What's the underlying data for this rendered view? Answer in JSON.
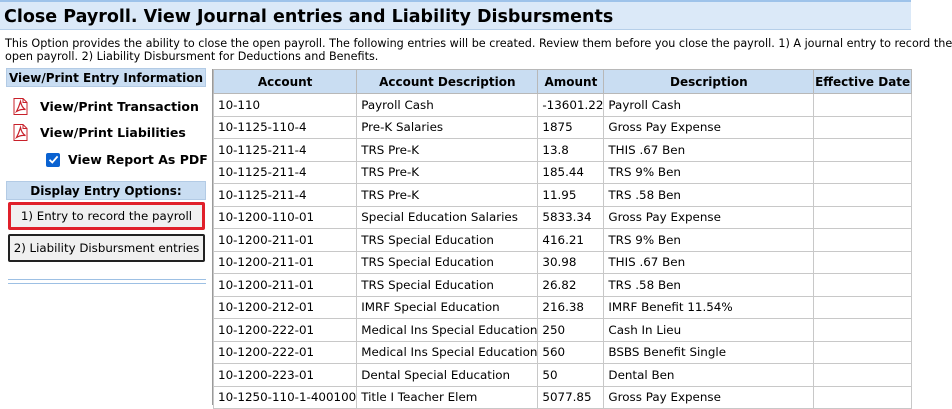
{
  "page": {
    "title": "Close Payroll. View Journal entries and Liability Disbursments",
    "description_line1": "This Option provides the ability to close the open payroll. The following entries will be created. Review them before you close the payroll. 1) A journal entry to record the",
    "description_line2": "open payroll. 2) Liability Disbursment for Deductions and Benefits."
  },
  "sidebar": {
    "view_header": "View/Print Entry Information",
    "view_transaction": "View/Print Transaction",
    "view_liabilities": "View/Print Liabilities",
    "view_as_pdf_label": "View Report As PDF",
    "view_as_pdf_checked": true,
    "display_header": "Display Entry Options:",
    "entry_payroll": "1) Entry to record the payroll",
    "entry_liability": "2) Liability Disbursment entries"
  },
  "table": {
    "headers": [
      "Account",
      "Account Description",
      "Amount",
      "Description",
      "Effective Date"
    ],
    "rows": [
      [
        "10-110",
        "Payroll Cash",
        "-13601.22",
        "Payroll Cash",
        ""
      ],
      [
        "10-1125-110-4",
        "Pre-K Salaries",
        "1875",
        "Gross Pay Expense",
        ""
      ],
      [
        "10-1125-211-4",
        "TRS Pre-K",
        "13.8",
        "THIS .67 Ben",
        ""
      ],
      [
        "10-1125-211-4",
        "TRS Pre-K",
        "185.44",
        "TRS 9% Ben",
        ""
      ],
      [
        "10-1125-211-4",
        "TRS Pre-K",
        "11.95",
        "TRS .58 Ben",
        ""
      ],
      [
        "10-1200-110-01",
        "Special Education Salaries",
        "5833.34",
        "Gross Pay Expense",
        ""
      ],
      [
        "10-1200-211-01",
        "TRS Special Education",
        "416.21",
        "TRS 9% Ben",
        ""
      ],
      [
        "10-1200-211-01",
        "TRS Special Education",
        "30.98",
        "THIS .67 Ben",
        ""
      ],
      [
        "10-1200-211-01",
        "TRS Special Education",
        "26.82",
        "TRS .58 Ben",
        ""
      ],
      [
        "10-1200-212-01",
        "IMRF Special Education",
        "216.38",
        "IMRF Benefit 11.54%",
        ""
      ],
      [
        "10-1200-222-01",
        "Medical Ins Special Education",
        "250",
        "Cash In Lieu",
        ""
      ],
      [
        "10-1200-222-01",
        "Medical Ins Special Education",
        "560",
        "BSBS Benefit Single",
        ""
      ],
      [
        "10-1200-223-01",
        "Dental Special Education",
        "50",
        "Dental Ben",
        ""
      ],
      [
        "10-1250-110-1-400100",
        "Title I Teacher Elem",
        "5077.85",
        "Gross Pay Expense",
        ""
      ]
    ]
  },
  "icons": {
    "transaction": "pdf-icon",
    "liabilities": "pdf-icon",
    "checkbox": "checkmark-icon"
  },
  "colors": {
    "title_bg": "#dbe9f8",
    "header_bg": "#c9ddf2",
    "active_border": "#e0202a",
    "pdf_red": "#c8202a",
    "checkbox_blue": "#0a62d1"
  }
}
